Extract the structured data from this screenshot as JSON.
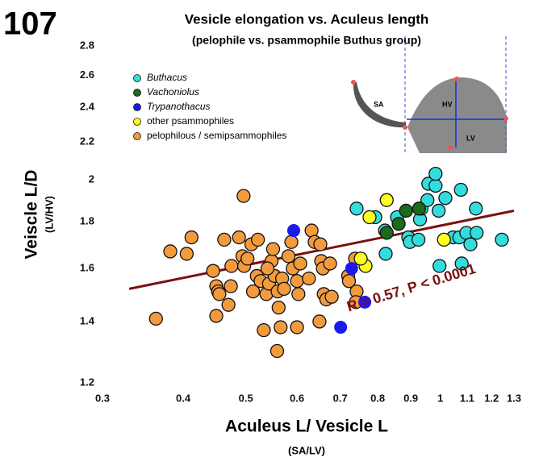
{
  "chart_data": {
    "type": "scatter",
    "panel_label": "107",
    "title": "Vesicle elongation vs. Aculeus length",
    "subtitle": "(pelophile vs. psammophile Buthus group)",
    "y_label": "Veiscle L/D",
    "y_sublabel": "(LV/HV)",
    "x_label": "Aculeus L/ Vesicle L",
    "x_sublabel": "(SA/LV)",
    "x_log": true,
    "y_log": true,
    "grid": false,
    "legend_position": "upper left",
    "xlim": [
      0.3,
      1.3
    ],
    "ylim": [
      1.2,
      2.8
    ],
    "xticks": [
      0.3,
      0.4,
      0.5,
      0.6,
      0.7,
      0.8,
      0.9,
      1,
      1.1,
      1.2,
      1.3
    ],
    "yticks": [
      1.2,
      1.4,
      1.6,
      1.8,
      2,
      2.2,
      2.4,
      2.6,
      2.8
    ],
    "annotation": "R = 0.57, P < 0.0001",
    "annotation_color": "#7b1010",
    "trend_line": {
      "color": "#7b1010",
      "x": [
        0.33,
        1.3
      ],
      "values": [
        1.52,
        1.85
      ]
    },
    "inset_labels": [
      "SA",
      "HV",
      "LV"
    ],
    "series": [
      {
        "name": "Buthacus",
        "italic": true,
        "color": "#33dddd",
        "x": [
          0.742,
          0.793,
          0.821,
          0.823,
          0.857,
          0.892,
          0.897,
          0.925,
          0.93,
          0.935,
          0.955,
          0.958,
          0.983,
          0.983,
          0.994,
          0.997,
          1.018,
          1.046,
          1.07,
          1.079,
          1.076,
          1.097,
          1.113,
          1.138,
          1.135,
          1.245
        ],
        "values": [
          1.86,
          1.82,
          1.76,
          1.66,
          1.82,
          1.73,
          1.71,
          1.72,
          1.81,
          1.86,
          1.9,
          1.98,
          1.97,
          2.03,
          1.85,
          1.61,
          1.91,
          1.73,
          1.73,
          1.62,
          1.95,
          1.75,
          1.7,
          1.75,
          1.86,
          1.72
        ]
      },
      {
        "name": "Vachoniolus",
        "italic": true,
        "color": "#1a6b1a",
        "x": [
          0.885,
          0.862,
          0.826,
          0.927
        ],
        "values": [
          1.85,
          1.79,
          1.75,
          1.86
        ]
      },
      {
        "name": "Trypanothacus",
        "italic": true,
        "color": "#1a1aee",
        "x": [
          0.593,
          0.729,
          0.764,
          0.701
        ],
        "values": [
          1.76,
          1.6,
          1.47,
          1.38
        ]
      },
      {
        "name": "other psammophiles",
        "italic": false,
        "color": "#ffff22",
        "x": [
          0.826,
          0.777,
          0.766,
          0.753,
          1.013
        ],
        "values": [
          1.9,
          1.82,
          1.61,
          1.64,
          1.72
        ]
      },
      {
        "name": "pelophilous / semipsammophiles",
        "italic": false,
        "color": "#f39a3c",
        "x": [
          0.363,
          0.382,
          0.405,
          0.412,
          0.445,
          0.463,
          0.45,
          0.453,
          0.455,
          0.45,
          0.47,
          0.474,
          0.475,
          0.488,
          0.494,
          0.496,
          0.497,
          0.503,
          0.51,
          0.513,
          0.52,
          0.527,
          0.533,
          0.538,
          0.543,
          0.548,
          0.551,
          0.554,
          0.56,
          0.562,
          0.566,
          0.559,
          0.569,
          0.573,
          0.582,
          0.588,
          0.591,
          0.6,
          0.6,
          0.603,
          0.607,
          0.632,
          0.639,
          0.652,
          0.65,
          0.654,
          0.658,
          0.66,
          0.666,
          0.675,
          0.679,
          0.72,
          0.722,
          0.738,
          0.742,
          0.74,
          0.626,
          0.54,
          0.522
        ],
        "values": [
          1.41,
          1.67,
          1.66,
          1.73,
          1.59,
          1.72,
          1.53,
          1.51,
          1.5,
          1.42,
          1.46,
          1.53,
          1.61,
          1.73,
          1.65,
          1.92,
          1.61,
          1.64,
          1.7,
          1.51,
          1.57,
          1.55,
          1.37,
          1.5,
          1.54,
          1.63,
          1.68,
          1.57,
          1.51,
          1.45,
          1.38,
          1.3,
          1.56,
          1.52,
          1.65,
          1.71,
          1.6,
          1.38,
          1.55,
          1.5,
          1.62,
          1.76,
          1.71,
          1.7,
          1.4,
          1.63,
          1.6,
          1.5,
          1.48,
          1.62,
          1.49,
          1.57,
          1.55,
          1.64,
          1.51,
          1.47,
          1.56,
          1.6,
          1.72
        ]
      }
    ]
  }
}
